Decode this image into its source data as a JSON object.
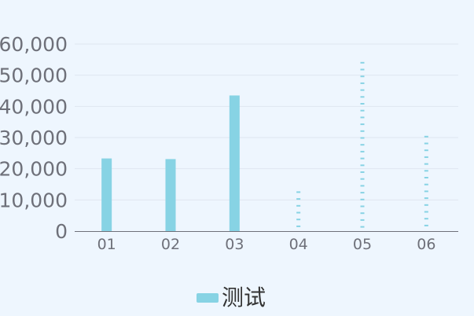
{
  "chart_data": {
    "type": "bar",
    "title": "",
    "xlabel": "",
    "ylabel": "",
    "categories": [
      "01",
      "02",
      "03",
      "04",
      "05",
      "06"
    ],
    "series": [
      {
        "name": "测试",
        "values": [
          23300,
          23100,
          43500,
          12500,
          54000,
          30300
        ],
        "styles": [
          "solid",
          "solid",
          "solid",
          "dashed",
          "dashed",
          "dashed"
        ]
      }
    ],
    "ylim": [
      0,
      60000
    ],
    "yticks": [
      0,
      10000,
      20000,
      30000,
      40000,
      50000,
      60000
    ],
    "ytick_labels": [
      "0",
      "10,000",
      "20,000",
      "30,000",
      "40,000",
      "50,000",
      "60,000"
    ],
    "grid": true,
    "legend_position": "bottom-center",
    "colors": {
      "bar": "#87d3e4",
      "grid": "#dfe6f0",
      "axis": "#6e7079",
      "tick_text": "#6e7079",
      "legend_text": "#333333",
      "background": "#eef6fe"
    }
  }
}
